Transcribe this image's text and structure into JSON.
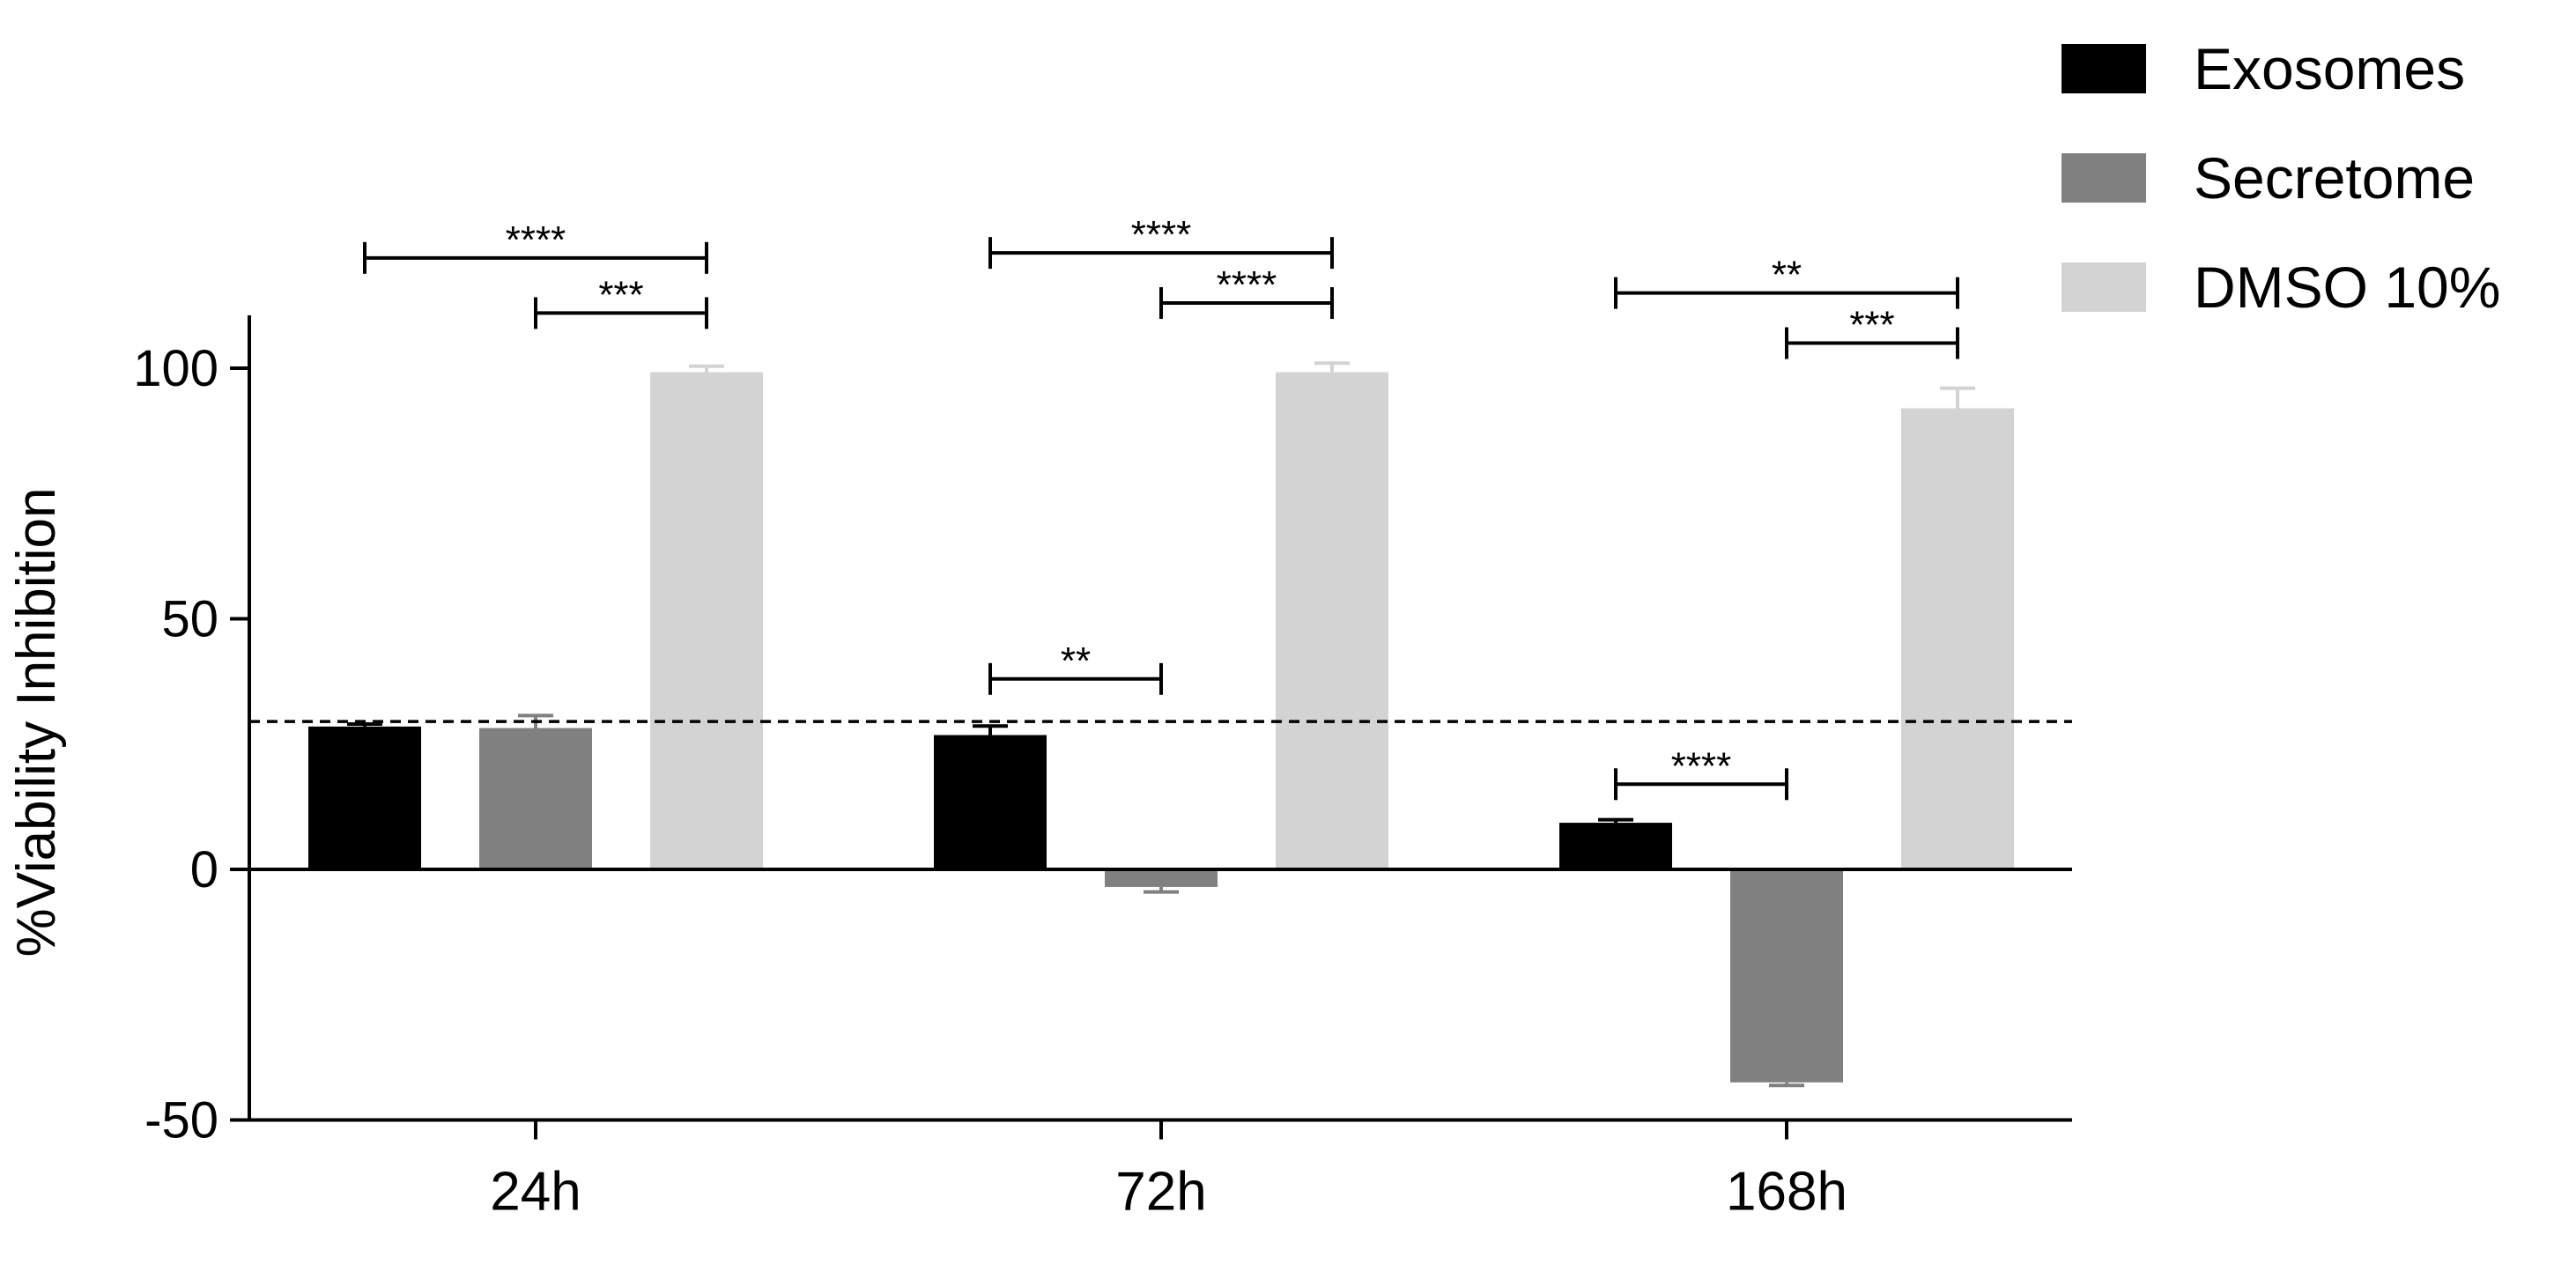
{
  "chart_data": {
    "type": "bar",
    "ylabel": "%Viability Inhibition",
    "xlabel": "",
    "ylim": [
      -50,
      100
    ],
    "yticks": [
      -50,
      0,
      50,
      100
    ],
    "ytick_labels": [
      "-50",
      "0",
      "50",
      "100"
    ],
    "categories": [
      "24h",
      "72h",
      "168h"
    ],
    "series": [
      {
        "name": "Exosomes",
        "color": "#000000",
        "values": [
          28.5,
          26.8,
          9.3
        ],
        "errors": [
          0.5,
          1.8,
          0.6
        ]
      },
      {
        "name": "Secretome",
        "color": "#808080",
        "values": [
          28.2,
          -3.5,
          -42.5
        ],
        "errors": [
          2.5,
          1.0,
          0.6
        ]
      },
      {
        "name": "DMSO 10%",
        "color": "#d3d3d3",
        "values": [
          99.2,
          99.2,
          92.0
        ],
        "errors": [
          1.2,
          1.8,
          4.0
        ]
      }
    ],
    "reference_line": {
      "y": 29.5,
      "style": "dashed"
    },
    "legend_position": "top-right",
    "significance": [
      {
        "category": 0,
        "from_series": 0,
        "to_series": 2,
        "level": 122,
        "label": "****"
      },
      {
        "category": 0,
        "from_series": 1,
        "to_series": 2,
        "level": 111,
        "label": "***"
      },
      {
        "category": 1,
        "from_series": 0,
        "to_series": 2,
        "level": 123,
        "label": "****"
      },
      {
        "category": 1,
        "from_series": 1,
        "to_series": 2,
        "level": 113,
        "label": "****"
      },
      {
        "category": 1,
        "from_series": 0,
        "to_series": 1,
        "level": 38,
        "label": "**"
      },
      {
        "category": 2,
        "from_series": 0,
        "to_series": 2,
        "level": 115,
        "label": "**"
      },
      {
        "category": 2,
        "from_series": 1,
        "to_series": 2,
        "level": 105,
        "label": "***"
      },
      {
        "category": 2,
        "from_series": 0,
        "to_series": 1,
        "level": 17,
        "label": "****"
      }
    ]
  }
}
